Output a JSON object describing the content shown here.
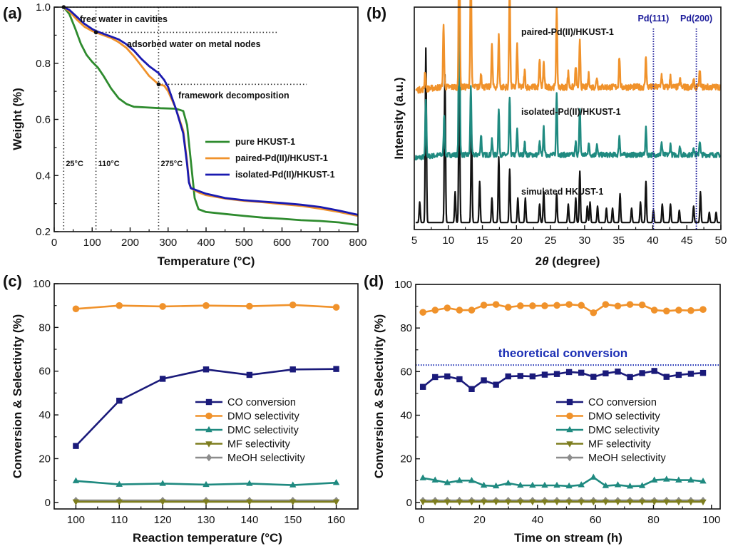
{
  "figure": {
    "panels": [
      "(a)",
      "(b)",
      "(c)",
      "(d)"
    ]
  },
  "colors": {
    "green": "#2e8b2e",
    "orange": "#f0922b",
    "blue": "#1a1ab0",
    "navy": "#1a1a7a",
    "teal": "#1f8a80",
    "olive": "#7d7d1e",
    "gray": "#8c8c8c",
    "black": "#111111",
    "pd_line": "#1a1a9a",
    "theo_line": "#1c2fb5"
  },
  "chart_data": [
    {
      "id": "a",
      "panel_label": "(a)",
      "type": "line",
      "title": "",
      "xlabel": "Temperature (°C)",
      "ylabel": "Weight (%)",
      "xlim": [
        0,
        800
      ],
      "ylim": [
        0.2,
        1.0
      ],
      "xticks": [
        0,
        100,
        200,
        300,
        400,
        500,
        600,
        700,
        800
      ],
      "yticks": [
        0.2,
        0.4,
        0.6,
        0.8,
        1.0
      ],
      "ytick_labels": [
        "0.2",
        "0.4",
        "0.6",
        "0.8",
        "1.0"
      ],
      "grid": false,
      "legend_position": "center-right",
      "series": [
        {
          "name": "pure HKUST-1",
          "color": "#2e8b2e",
          "x": [
            25,
            40,
            55,
            70,
            85,
            100,
            115,
            130,
            150,
            170,
            190,
            210,
            240,
            280,
            320,
            340,
            350,
            360,
            370,
            380,
            400,
            450,
            500,
            550,
            600,
            650,
            700,
            750,
            800
          ],
          "y": [
            1.0,
            0.975,
            0.925,
            0.87,
            0.83,
            0.805,
            0.785,
            0.755,
            0.71,
            0.675,
            0.655,
            0.645,
            0.643,
            0.64,
            0.638,
            0.63,
            0.58,
            0.45,
            0.32,
            0.28,
            0.27,
            0.263,
            0.256,
            0.25,
            0.246,
            0.241,
            0.238,
            0.233,
            0.224
          ]
        },
        {
          "name": "paired-Pd(II)/HKUST-1",
          "color": "#f0922b",
          "x": [
            25,
            40,
            60,
            80,
            100,
            110,
            130,
            150,
            170,
            190,
            210,
            230,
            250,
            275,
            290,
            300,
            320,
            340,
            350,
            355,
            360,
            380,
            400,
            450,
            500,
            550,
            600,
            650,
            700,
            750,
            800
          ],
          "y": [
            1.0,
            0.985,
            0.955,
            0.93,
            0.915,
            0.91,
            0.9,
            0.89,
            0.875,
            0.855,
            0.825,
            0.79,
            0.755,
            0.725,
            0.72,
            0.7,
            0.64,
            0.56,
            0.45,
            0.38,
            0.355,
            0.34,
            0.33,
            0.318,
            0.31,
            0.305,
            0.298,
            0.292,
            0.282,
            0.27,
            0.256
          ]
        },
        {
          "name": "isolated-Pd(II)/HKUST-1",
          "color": "#1a1ab0",
          "x": [
            25,
            40,
            60,
            80,
            100,
            110,
            130,
            150,
            170,
            190,
            210,
            230,
            250,
            275,
            290,
            300,
            320,
            340,
            350,
            355,
            360,
            380,
            400,
            450,
            500,
            550,
            600,
            650,
            700,
            750,
            800
          ],
          "y": [
            1.0,
            0.99,
            0.965,
            0.94,
            0.922,
            0.915,
            0.905,
            0.895,
            0.885,
            0.868,
            0.845,
            0.815,
            0.79,
            0.765,
            0.74,
            0.715,
            0.64,
            0.55,
            0.44,
            0.375,
            0.355,
            0.345,
            0.335,
            0.32,
            0.312,
            0.307,
            0.302,
            0.296,
            0.288,
            0.275,
            0.26
          ]
        }
      ],
      "annotations": [
        {
          "text": "free water in cavities",
          "x": 25,
          "y": 1.0
        },
        {
          "text": "adsorbed water on metal nodes",
          "x": 110,
          "y": 0.91
        },
        {
          "text": "framework decomposition",
          "x": 275,
          "y": 0.725
        }
      ],
      "guide_hlines": [
        {
          "y": 1.0,
          "x_start": 25,
          "x_end": 385
        },
        {
          "y": 0.91,
          "x_start": 110,
          "x_end": 590
        },
        {
          "y": 0.725,
          "x_start": 275,
          "x_end": 665
        }
      ],
      "guide_vlines": [
        {
          "x": 25,
          "label": "25°C"
        },
        {
          "x": 110,
          "label": "110°C"
        },
        {
          "x": 275,
          "label": "275°C"
        }
      ]
    },
    {
      "id": "b",
      "panel_label": "(b)",
      "type": "line",
      "title": "",
      "xlabel": "2θ (degree)",
      "xlabel_parts": [
        "2",
        "θ",
        " (degree)"
      ],
      "ylabel": "Intensity (a.u.)",
      "xlim": [
        5,
        50
      ],
      "ylim": [
        0,
        1
      ],
      "xticks": [
        5,
        10,
        15,
        20,
        25,
        30,
        35,
        40,
        45,
        50
      ],
      "yticks": [],
      "grid": false,
      "series": [
        {
          "name": "simulated HKUST-1",
          "label": "simulated HKUST-1",
          "color": "#111111",
          "baseline": 0.02,
          "noise": 0.0,
          "peaks": [
            [
              5.8,
              0.1
            ],
            [
              6.7,
              0.85
            ],
            [
              9.5,
              0.72
            ],
            [
              11.0,
              0.15
            ],
            [
              11.6,
              0.7
            ],
            [
              13.4,
              0.45
            ],
            [
              14.6,
              0.2
            ],
            [
              16.4,
              0.12
            ],
            [
              17.4,
              0.32
            ],
            [
              19.0,
              0.26
            ],
            [
              20.2,
              0.12
            ],
            [
              21.3,
              0.12
            ],
            [
              23.4,
              0.09
            ],
            [
              24.0,
              0.15
            ],
            [
              25.9,
              0.14
            ],
            [
              27.6,
              0.09
            ],
            [
              28.7,
              0.12
            ],
            [
              29.3,
              0.25
            ],
            [
              30.4,
              0.08
            ],
            [
              30.8,
              0.1
            ],
            [
              31.9,
              0.08
            ],
            [
              33.2,
              0.07
            ],
            [
              34.1,
              0.07
            ],
            [
              35.2,
              0.14
            ],
            [
              36.9,
              0.07
            ],
            [
              38.2,
              0.1
            ],
            [
              39.0,
              0.2
            ],
            [
              40.1,
              0.06
            ],
            [
              41.4,
              0.09
            ],
            [
              42.6,
              0.09
            ],
            [
              43.9,
              0.06
            ],
            [
              46.0,
              0.08
            ],
            [
              47.0,
              0.15
            ],
            [
              48.3,
              0.05
            ],
            [
              49.3,
              0.05
            ]
          ]
        },
        {
          "name": "isolated-Pd(II)/HKUST-1",
          "label": "isolated-Pd(II)/HKUST-1",
          "color": "#1f8a80",
          "baseline": 0.35,
          "noise": 0.012,
          "peaks": [
            [
              6.7,
              0.28
            ],
            [
              9.4,
              0.2
            ],
            [
              11.6,
              0.95
            ],
            [
              13.3,
              0.33
            ],
            [
              14.8,
              0.1
            ],
            [
              16.4,
              0.07
            ],
            [
              17.4,
              0.22
            ],
            [
              19.0,
              0.28
            ],
            [
              20.1,
              0.12
            ],
            [
              21.2,
              0.06
            ],
            [
              23.4,
              0.06
            ],
            [
              24.0,
              0.13
            ],
            [
              25.9,
              0.3
            ],
            [
              28.7,
              0.06
            ],
            [
              29.3,
              0.23
            ],
            [
              30.6,
              0.06
            ],
            [
              31.8,
              0.05
            ],
            [
              35.1,
              0.09
            ],
            [
              39.0,
              0.13
            ],
            [
              41.3,
              0.06
            ],
            [
              42.6,
              0.05
            ],
            [
              44.0,
              0.04
            ],
            [
              46.0,
              0.04
            ],
            [
              46.9,
              0.07
            ]
          ]
        },
        {
          "name": "paired-Pd(II)/HKUST-1",
          "label": "paired-Pd(II)/HKUST-1",
          "color": "#f0922b",
          "baseline": 0.68,
          "noise": 0.015,
          "peaks": [
            [
              6.6,
              0.09
            ],
            [
              9.3,
              0.3
            ],
            [
              11.6,
              0.92
            ],
            [
              13.3,
              0.65
            ],
            [
              14.8,
              0.07
            ],
            [
              16.4,
              0.2
            ],
            [
              17.4,
              0.25
            ],
            [
              19.0,
              0.5
            ],
            [
              20.1,
              0.2
            ],
            [
              21.2,
              0.08
            ],
            [
              23.4,
              0.13
            ],
            [
              24.0,
              0.12
            ],
            [
              25.9,
              0.38
            ],
            [
              27.6,
              0.07
            ],
            [
              28.7,
              0.1
            ],
            [
              29.3,
              0.22
            ],
            [
              30.6,
              0.06
            ],
            [
              31.8,
              0.05
            ],
            [
              35.1,
              0.15
            ],
            [
              39.0,
              0.15
            ],
            [
              41.3,
              0.06
            ],
            [
              42.6,
              0.05
            ],
            [
              44.0,
              0.04
            ],
            [
              46.0,
              0.03
            ],
            [
              46.9,
              0.08
            ]
          ]
        }
      ],
      "reference_lines": [
        {
          "label": "Pd(111)",
          "x": 40.1
        },
        {
          "label": "Pd(200)",
          "x": 46.4
        }
      ]
    },
    {
      "id": "c",
      "panel_label": "(c)",
      "type": "line",
      "title": "",
      "xlabel": "Reaction temperature (°C)",
      "ylabel": "Conversion & Selectivity (%)",
      "xlim": [
        95,
        165
      ],
      "ylim": [
        -3,
        100
      ],
      "xticks": [
        100,
        110,
        120,
        130,
        140,
        150,
        160
      ],
      "yticks": [
        0,
        20,
        40,
        60,
        80,
        100
      ],
      "grid": false,
      "legend_position": "center-right",
      "x": [
        100,
        110,
        120,
        130,
        140,
        150,
        160
      ],
      "series": [
        {
          "name": "CO conversion",
          "color": "#1a1a7a",
          "marker": "square",
          "values": [
            25.8,
            46.5,
            56.5,
            60.8,
            58.3,
            60.8,
            61.0
          ]
        },
        {
          "name": "DMO selectivity",
          "color": "#f0922b",
          "marker": "circle",
          "values": [
            88.5,
            90.0,
            89.6,
            90.0,
            89.7,
            90.3,
            89.2
          ]
        },
        {
          "name": "DMC selectivity",
          "color": "#1f8a80",
          "marker": "triangle-up",
          "values": [
            9.8,
            8.2,
            8.6,
            8.1,
            8.6,
            7.9,
            9.0
          ]
        },
        {
          "name": "MF selectivity",
          "color": "#7d7d1e",
          "marker": "triangle-down",
          "values": [
            0.3,
            0.3,
            0.3,
            0.3,
            0.3,
            0.3,
            0.3
          ]
        },
        {
          "name": "MeOH selectivity",
          "color": "#8c8c8c",
          "marker": "diamond",
          "values": [
            0.9,
            0.9,
            0.9,
            0.9,
            0.9,
            0.9,
            0.9
          ]
        }
      ]
    },
    {
      "id": "d",
      "panel_label": "(d)",
      "type": "line",
      "title": "",
      "xlabel": "Time on stream (h)",
      "ylabel": "Conversion & Selectivity (%)",
      "xlim": [
        -2,
        103
      ],
      "ylim": [
        -3,
        100
      ],
      "xticks": [
        0,
        20,
        40,
        60,
        80,
        100
      ],
      "yticks": [
        0,
        20,
        40,
        60,
        80,
        100
      ],
      "grid": false,
      "legend_position": "center-right",
      "x": [
        0.5,
        4.7,
        8.9,
        13.1,
        17.3,
        21.5,
        25.7,
        29.9,
        34.1,
        38.3,
        42.5,
        46.7,
        50.9,
        55.1,
        59.3,
        63.5,
        67.7,
        71.9,
        76.1,
        80.3,
        84.5,
        88.7,
        92.9,
        97.1
      ],
      "series": [
        {
          "name": "CO conversion",
          "color": "#1a1a7a",
          "marker": "square",
          "values": [
            53.0,
            57.5,
            57.8,
            56.5,
            52.0,
            56.0,
            54.0,
            57.8,
            58.0,
            57.8,
            58.6,
            58.9,
            59.8,
            59.5,
            57.6,
            59.2,
            60.0,
            57.5,
            59.3,
            60.3,
            57.6,
            58.5,
            59.0,
            59.4
          ]
        },
        {
          "name": "DMO selectivity",
          "color": "#f0922b",
          "marker": "circle",
          "values": [
            87.2,
            88.2,
            89.2,
            88.2,
            88.2,
            90.5,
            90.8,
            89.5,
            90.2,
            90.2,
            90.2,
            90.4,
            90.8,
            90.4,
            87.0,
            90.8,
            90.1,
            90.8,
            90.6,
            88.2,
            87.8,
            88.2,
            88.0,
            88.5
          ]
        },
        {
          "name": "DMC selectivity",
          "color": "#1f8a80",
          "marker": "triangle-up",
          "values": [
            11.2,
            10.2,
            9.0,
            10.0,
            10.0,
            7.8,
            7.5,
            8.8,
            7.8,
            7.8,
            7.8,
            7.8,
            7.5,
            8.0,
            11.5,
            7.6,
            8.0,
            7.4,
            7.6,
            10.2,
            10.6,
            10.2,
            10.2,
            9.7
          ]
        },
        {
          "name": "MF selectivity",
          "color": "#7d7d1e",
          "marker": "triangle-down",
          "values": [
            0.3,
            0.3,
            0.3,
            0.3,
            0.3,
            0.3,
            0.3,
            0.3,
            0.3,
            0.3,
            0.3,
            0.3,
            0.3,
            0.3,
            0.3,
            0.3,
            0.3,
            0.3,
            0.3,
            0.3,
            0.3,
            0.3,
            0.3,
            0.3
          ]
        },
        {
          "name": "MeOH selectivity",
          "color": "#8c8c8c",
          "marker": "diamond",
          "values": [
            0.9,
            0.9,
            0.9,
            0.9,
            0.9,
            0.9,
            0.9,
            0.9,
            0.9,
            0.9,
            0.9,
            0.9,
            0.9,
            0.9,
            0.9,
            0.9,
            0.9,
            0.9,
            0.9,
            0.9,
            0.9,
            0.9,
            0.9,
            0.9
          ]
        }
      ],
      "reference_hline": {
        "label": "theoretical conversion",
        "y": 63.0
      }
    }
  ]
}
